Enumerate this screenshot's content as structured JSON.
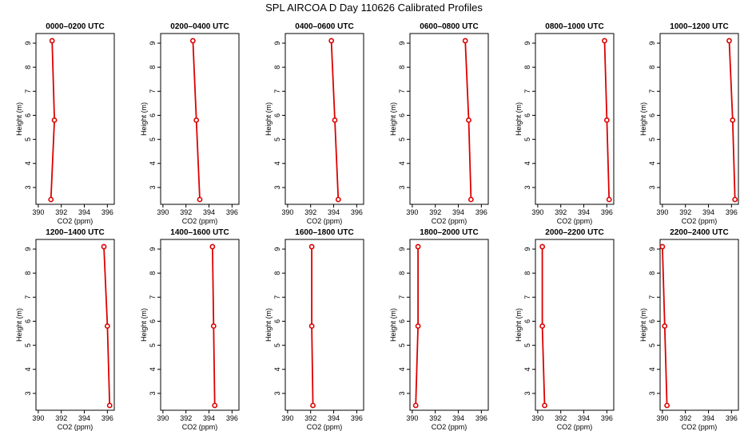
{
  "title": "SPL AIRCOA D  Day 110626  Calibrated Profiles",
  "colors": {
    "series": "#dd0000",
    "axes": "#000000",
    "background": "#ffffff"
  },
  "chart_data": [
    {
      "type": "line",
      "title": "0000–0200 UTC",
      "xlabel": "CO2 (ppm)",
      "ylabel": "Height (m)",
      "xlim": [
        389.8,
        396.6
      ],
      "ylim": [
        2.3,
        9.4
      ],
      "xticks": [
        390,
        392,
        394,
        396
      ],
      "yticks": [
        3,
        4,
        5,
        6,
        7,
        8,
        9
      ],
      "x": [
        391.1,
        391.4,
        391.2
      ],
      "y": [
        2.5,
        5.8,
        9.1
      ]
    },
    {
      "type": "line",
      "title": "0200–0400 UTC",
      "xlabel": "CO2 (ppm)",
      "ylabel": "Height (m)",
      "xlim": [
        389.8,
        396.6
      ],
      "ylim": [
        2.3,
        9.4
      ],
      "xticks": [
        390,
        392,
        394,
        396
      ],
      "yticks": [
        3,
        4,
        5,
        6,
        7,
        8,
        9
      ],
      "x": [
        393.2,
        392.9,
        392.6
      ],
      "y": [
        2.5,
        5.8,
        9.1
      ]
    },
    {
      "type": "line",
      "title": "0400–0600 UTC",
      "xlabel": "CO2 (ppm)",
      "ylabel": "Height (m)",
      "xlim": [
        389.8,
        396.6
      ],
      "ylim": [
        2.3,
        9.4
      ],
      "xticks": [
        390,
        392,
        394,
        396
      ],
      "yticks": [
        3,
        4,
        5,
        6,
        7,
        8,
        9
      ],
      "x": [
        394.4,
        394.1,
        393.8
      ],
      "y": [
        2.5,
        5.8,
        9.1
      ]
    },
    {
      "type": "line",
      "title": "0600–0800 UTC",
      "xlabel": "CO2 (ppm)",
      "ylabel": "Height (m)",
      "xlim": [
        389.8,
        396.6
      ],
      "ylim": [
        2.3,
        9.4
      ],
      "xticks": [
        390,
        392,
        394,
        396
      ],
      "yticks": [
        3,
        4,
        5,
        6,
        7,
        8,
        9
      ],
      "x": [
        395.1,
        394.9,
        394.6
      ],
      "y": [
        2.5,
        5.8,
        9.1
      ]
    },
    {
      "type": "line",
      "title": "0800–1000 UTC",
      "xlabel": "CO2 (ppm)",
      "ylabel": "Height (m)",
      "xlim": [
        389.8,
        396.6
      ],
      "ylim": [
        2.3,
        9.4
      ],
      "xticks": [
        390,
        392,
        394,
        396
      ],
      "yticks": [
        3,
        4,
        5,
        6,
        7,
        8,
        9
      ],
      "x": [
        396.2,
        396.0,
        395.8
      ],
      "y": [
        2.5,
        5.8,
        9.1
      ]
    },
    {
      "type": "line",
      "title": "1000–1200 UTC",
      "xlabel": "CO2 (ppm)",
      "ylabel": "Height (m)",
      "xlim": [
        389.8,
        396.6
      ],
      "ylim": [
        2.3,
        9.4
      ],
      "xticks": [
        390,
        392,
        394,
        396
      ],
      "yticks": [
        3,
        4,
        5,
        6,
        7,
        8,
        9
      ],
      "x": [
        396.3,
        396.1,
        395.8
      ],
      "y": [
        2.5,
        5.8,
        9.1
      ]
    },
    {
      "type": "line",
      "title": "1200–1400 UTC",
      "xlabel": "CO2 (ppm)",
      "ylabel": "Height (m)",
      "xlim": [
        389.8,
        396.6
      ],
      "ylim": [
        2.3,
        9.4
      ],
      "xticks": [
        390,
        392,
        394,
        396
      ],
      "yticks": [
        3,
        4,
        5,
        6,
        7,
        8,
        9
      ],
      "x": [
        396.2,
        396.0,
        395.7
      ],
      "y": [
        2.5,
        5.8,
        9.1
      ]
    },
    {
      "type": "line",
      "title": "1400–1600 UTC",
      "xlabel": "CO2 (ppm)",
      "ylabel": "Height (m)",
      "xlim": [
        389.8,
        396.6
      ],
      "ylim": [
        2.3,
        9.4
      ],
      "xticks": [
        390,
        392,
        394,
        396
      ],
      "yticks": [
        3,
        4,
        5,
        6,
        7,
        8,
        9
      ],
      "x": [
        394.5,
        394.4,
        394.3
      ],
      "y": [
        2.5,
        5.8,
        9.1
      ]
    },
    {
      "type": "line",
      "title": "1600–1800 UTC",
      "xlabel": "CO2 (ppm)",
      "ylabel": "Height (m)",
      "xlim": [
        389.8,
        396.6
      ],
      "ylim": [
        2.3,
        9.4
      ],
      "xticks": [
        390,
        392,
        394,
        396
      ],
      "yticks": [
        3,
        4,
        5,
        6,
        7,
        8,
        9
      ],
      "x": [
        392.2,
        392.1,
        392.1
      ],
      "y": [
        2.5,
        5.8,
        9.1
      ]
    },
    {
      "type": "line",
      "title": "1800–2000 UTC",
      "xlabel": "CO2 (ppm)",
      "ylabel": "Height (m)",
      "xlim": [
        389.8,
        396.6
      ],
      "ylim": [
        2.3,
        9.4
      ],
      "xticks": [
        390,
        392,
        394,
        396
      ],
      "yticks": [
        3,
        4,
        5,
        6,
        7,
        8,
        9
      ],
      "x": [
        390.3,
        390.5,
        390.5
      ],
      "y": [
        2.5,
        5.8,
        9.1
      ]
    },
    {
      "type": "line",
      "title": "2000–2200 UTC",
      "xlabel": "CO2 (ppm)",
      "ylabel": "Height (m)",
      "xlim": [
        389.8,
        396.6
      ],
      "ylim": [
        2.3,
        9.4
      ],
      "xticks": [
        390,
        392,
        394,
        396
      ],
      "yticks": [
        3,
        4,
        5,
        6,
        7,
        8,
        9
      ],
      "x": [
        390.6,
        390.4,
        390.4
      ],
      "y": [
        2.5,
        5.8,
        9.1
      ]
    },
    {
      "type": "line",
      "title": "2200–2400 UTC",
      "xlabel": "CO2 (ppm)",
      "ylabel": "Height (m)",
      "xlim": [
        389.8,
        396.6
      ],
      "ylim": [
        2.3,
        9.4
      ],
      "xticks": [
        390,
        392,
        394,
        396
      ],
      "yticks": [
        3,
        4,
        5,
        6,
        7,
        8,
        9
      ],
      "x": [
        390.4,
        390.2,
        390.0
      ],
      "y": [
        2.5,
        5.8,
        9.1
      ]
    }
  ]
}
